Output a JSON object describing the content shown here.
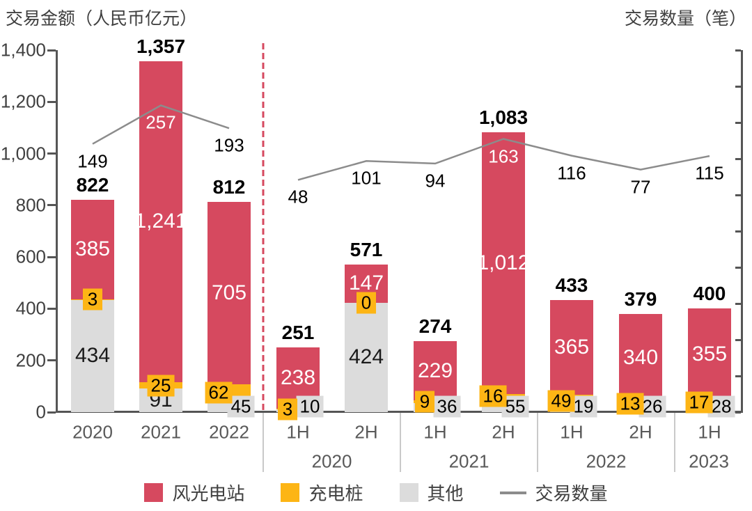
{
  "header": {
    "left_title": "交易金额（人民币亿元）",
    "right_title": "交易数量（笔）"
  },
  "colors": {
    "wind_solar": "#d6495f",
    "charging": "#fdb515",
    "other": "#dcdcdc",
    "line": "#8c8c8c",
    "axis": "#555555",
    "divider": "#d6495f",
    "separator": "#c9c9c9",
    "tick_text": "#404040",
    "x_text": "#595959"
  },
  "y_axis": {
    "tick_labels": [
      "0",
      "200",
      "400",
      "600",
      "800",
      "1,000",
      "1,200",
      "1,400"
    ],
    "min": 0,
    "max": 1400
  },
  "x_axis": {
    "annual_ticks": [
      "2020",
      "2021",
      "2022"
    ],
    "half_year_groups": [
      {
        "year": "2020",
        "ticks": [
          "1H",
          "2H"
        ]
      },
      {
        "year": "2021",
        "ticks": [
          "1H",
          "2H"
        ]
      },
      {
        "year": "2022",
        "ticks": [
          "1H",
          "2H"
        ]
      },
      {
        "year": "2023",
        "ticks": [
          "1H"
        ]
      }
    ]
  },
  "legend": [
    {
      "label": "风光电站",
      "type": "square",
      "color": "#d6495f"
    },
    {
      "label": "充电桩",
      "type": "square",
      "color": "#fdb515"
    },
    {
      "label": "其他",
      "type": "square",
      "color": "#dcdcdc"
    },
    {
      "label": "交易数量",
      "type": "line",
      "color": "#8c8c8c"
    }
  ],
  "bars": [
    {
      "tick": "2020",
      "total_label": "822",
      "wind_solar": 385,
      "wind_solar_label": "385",
      "charging": 3,
      "charging_label": "3",
      "other": 434,
      "other_label": "434",
      "line": 149,
      "line_label": "149"
    },
    {
      "tick": "2021",
      "total_label": "1,357",
      "wind_solar": 1241,
      "wind_solar_label": "1,241",
      "charging": 25,
      "charging_label": "25",
      "other": 91,
      "other_label": "91",
      "line": 257,
      "line_label": "257"
    },
    {
      "tick": "2022",
      "total_label": "812",
      "wind_solar": 705,
      "wind_solar_label": "705",
      "charging": 62,
      "charging_label": "62",
      "other": 45,
      "other_label": "45",
      "line": 193,
      "line_label": "193"
    },
    {
      "tick": "1H",
      "total_label": "251",
      "wind_solar": 238,
      "wind_solar_label": "238",
      "charging": 3,
      "charging_label": "3",
      "other": 10,
      "other_label": "10",
      "line": 48,
      "line_label": "48"
    },
    {
      "tick": "2H",
      "total_label": "571",
      "wind_solar": 147,
      "wind_solar_label": "147",
      "charging": 0,
      "charging_label": "0",
      "other": 424,
      "other_label": "424",
      "line": 101,
      "line_label": "101"
    },
    {
      "tick": "1H",
      "total_label": "274",
      "wind_solar": 229,
      "wind_solar_label": "229",
      "charging": 9,
      "charging_label": "9",
      "other": 36,
      "other_label": "36",
      "line": 94,
      "line_label": "94"
    },
    {
      "tick": "2H",
      "total_label": "1,083",
      "wind_solar": 1012,
      "wind_solar_label": "1,012",
      "charging": 16,
      "charging_label": "16",
      "other": 55,
      "other_label": "55",
      "line": 163,
      "line_label": "163"
    },
    {
      "tick": "1H",
      "total_label": "433",
      "wind_solar": 365,
      "wind_solar_label": "365",
      "charging": 49,
      "charging_label": "49",
      "other": 19,
      "other_label": "19",
      "line": 116,
      "line_label": "116"
    },
    {
      "tick": "2H",
      "total_label": "379",
      "wind_solar": 340,
      "wind_solar_label": "340",
      "charging": 13,
      "charging_label": "13",
      "other": 26,
      "other_label": "26",
      "line": 77,
      "line_label": "77"
    },
    {
      "tick": "1H",
      "total_label": "400",
      "wind_solar": 355,
      "wind_solar_label": "355",
      "charging": 17,
      "charging_label": "17",
      "other": 28,
      "other_label": "28",
      "line": 115,
      "line_label": "115"
    }
  ],
  "chart_data": {
    "type": "bar",
    "subtype": "stacked-bars-with-line",
    "title": "",
    "categories": [
      "2020",
      "2021",
      "2022",
      "2020 1H",
      "2020 2H",
      "2021 1H",
      "2021 2H",
      "2022 1H",
      "2022 2H",
      "2023 1H"
    ],
    "series": [
      {
        "name": "风光电站",
        "type": "bar",
        "color": "#d6495f",
        "values": [
          385,
          1241,
          705,
          238,
          147,
          229,
          1012,
          365,
          340,
          355
        ]
      },
      {
        "name": "充电桩",
        "type": "bar",
        "color": "#fdb515",
        "values": [
          3,
          25,
          62,
          3,
          0,
          9,
          16,
          49,
          13,
          17
        ]
      },
      {
        "name": "其他",
        "type": "bar",
        "color": "#dcdcdc",
        "values": [
          434,
          91,
          45,
          10,
          424,
          36,
          55,
          19,
          26,
          28
        ]
      },
      {
        "name": "交易数量",
        "type": "line",
        "color": "#8c8c8c",
        "values": [
          149,
          257,
          193,
          48,
          101,
          94,
          163,
          116,
          77,
          115
        ]
      }
    ],
    "totals": [
      822,
      1357,
      812,
      251,
      571,
      274,
      1083,
      433,
      379,
      400
    ],
    "xlabel": "",
    "ylabel": "交易金额（人民币亿元）",
    "y2label": "交易数量（笔）",
    "ylim": [
      0,
      1400
    ],
    "grid": false,
    "legend_position": "bottom",
    "annual_half_divider_after_index": 2
  }
}
